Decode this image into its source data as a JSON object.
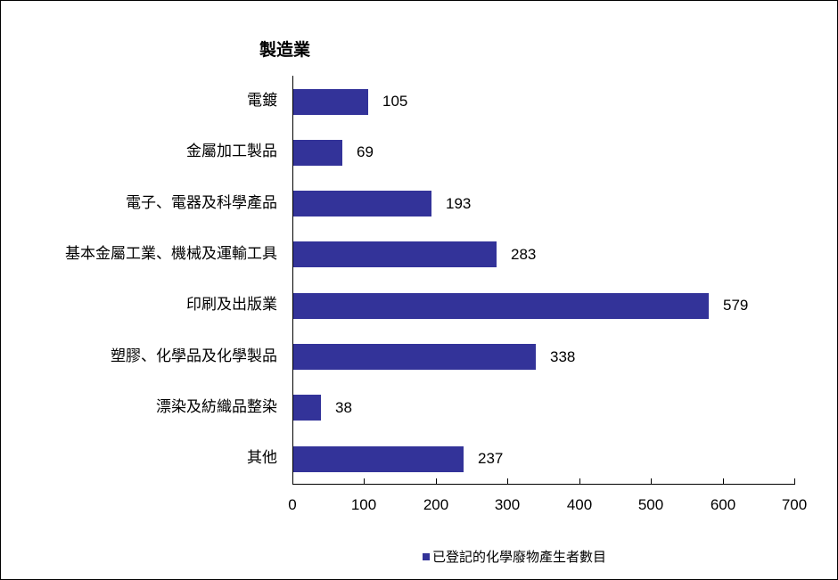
{
  "chart_data": {
    "type": "bar",
    "orientation": "horizontal",
    "title": "製造業",
    "categories": [
      "電鍍",
      "金屬加工製品",
      "電子、電器及科學產品",
      "基本金屬工業、機械及運輸工具",
      "印刷及出版業",
      "塑膠、化學品及化學製品",
      "漂染及紡織品整染",
      "其他"
    ],
    "series": [
      {
        "name": "已登記的化學廢物產生者數目",
        "values": [
          105,
          69,
          193,
          283,
          579,
          338,
          38,
          237
        ],
        "color": "#333399"
      }
    ],
    "xlabel": "",
    "ylabel": "",
    "xlim": [
      0,
      700
    ],
    "xticks": [
      0,
      100,
      200,
      300,
      400,
      500,
      600,
      700
    ],
    "grid": false,
    "legend_position": "bottom",
    "data_labels": true
  },
  "title": "製造業",
  "legend": {
    "label": "已登記的化學廢物產生者數目",
    "color": "#333399"
  },
  "xticks": [
    "0",
    "100",
    "200",
    "300",
    "400",
    "500",
    "600",
    "700"
  ],
  "rows": [
    {
      "label": "電鍍",
      "value": "105"
    },
    {
      "label": "金屬加工製品",
      "value": "69"
    },
    {
      "label": "電子、電器及科學產品",
      "value": "193"
    },
    {
      "label": "基本金屬工業、機械及運輸工具",
      "value": "283"
    },
    {
      "label": "印刷及出版業",
      "value": "579"
    },
    {
      "label": "塑膠、化學品及化學製品",
      "value": "338"
    },
    {
      "label": "漂染及紡織品整染",
      "value": "38"
    },
    {
      "label": "其他",
      "value": "237"
    }
  ]
}
